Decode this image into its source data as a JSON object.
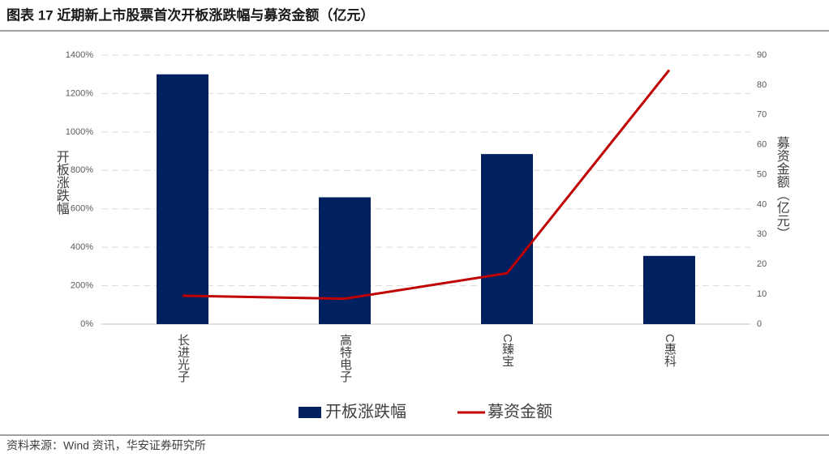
{
  "chart_data": {
    "type": "bar",
    "title": "图表 17 近期新上市股票首次开板涨跌幅与募资金额（亿元）",
    "source": "资料来源：Wind 资讯，华安证券研究所",
    "y_label": "开板涨跌幅",
    "y2_label": "募资金额（亿元）",
    "categories": [
      "长进光子",
      "高特电子",
      "C臻宝",
      "C惠科"
    ],
    "series": [
      {
        "name": "开板涨跌幅",
        "type": "bar",
        "color": "#002060",
        "values": [
          1300,
          660,
          885,
          355
        ]
      },
      {
        "name": "募资金额",
        "type": "line",
        "color": "#c00000",
        "axis": "y2",
        "values": [
          9.5,
          8.5,
          17,
          85
        ]
      }
    ],
    "ylim": [
      0,
      1400
    ],
    "yticks": [
      {
        "value": 0,
        "label": "0%"
      },
      {
        "value": 200,
        "label": "200%"
      },
      {
        "value": 400,
        "label": "400%"
      },
      {
        "value": 600,
        "label": "600%"
      },
      {
        "value": 800,
        "label": "800%"
      },
      {
        "value": 1000,
        "label": "1000%"
      },
      {
        "value": 1200,
        "label": "1200%"
      },
      {
        "value": 1400,
        "label": "1400%"
      }
    ],
    "y2lim": [
      0,
      90
    ],
    "y2ticks": [
      0,
      10,
      20,
      30,
      40,
      50,
      60,
      70,
      80,
      90
    ],
    "grid": true
  }
}
